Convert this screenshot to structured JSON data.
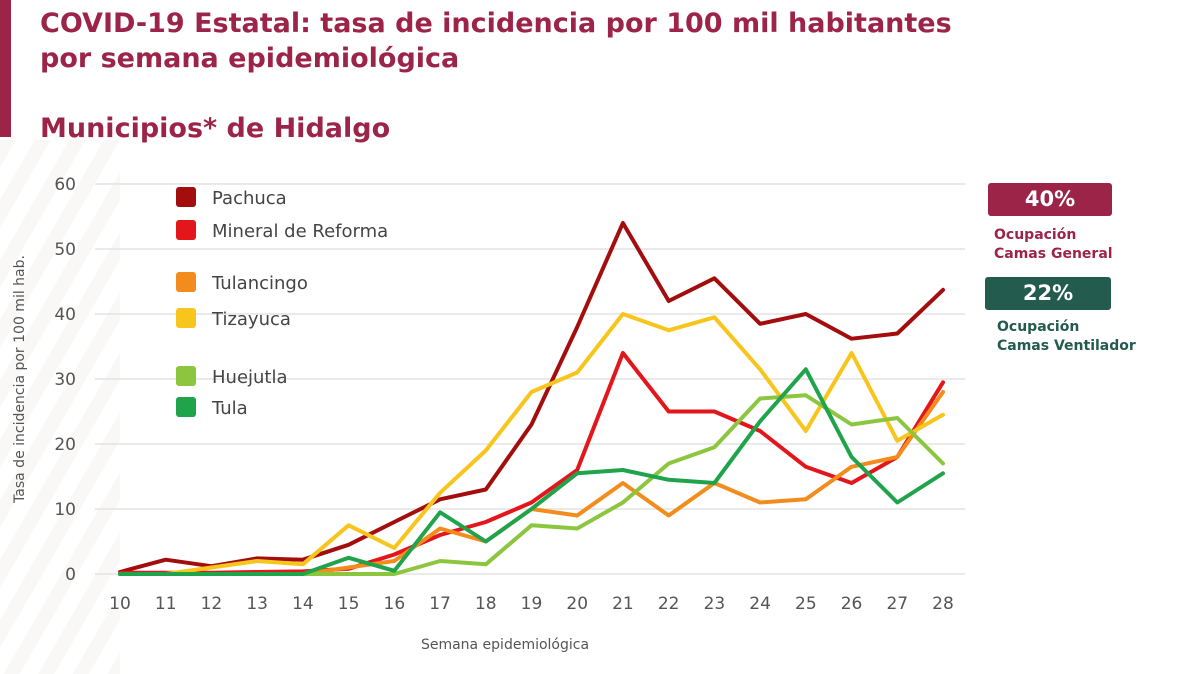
{
  "header": {
    "title_line1": "COVID-19 Estatal: tasa de incidencia por 100 mil habitantes",
    "title_line2": "por semana epidemiológica",
    "subtitle": "Municipios* de Hidalgo"
  },
  "colors": {
    "accent": "#9d2449",
    "gridline": "#e3e3e3",
    "badge_general": "#9d2449",
    "badge_ventilador": "#235b4e"
  },
  "indicators": {
    "general": {
      "value": "40%",
      "line1": "Ocupación",
      "line2": "Camas General"
    },
    "ventilador": {
      "value": "22%",
      "line1": "Ocupación",
      "line2": "Camas Ventilador"
    }
  },
  "chart_data": {
    "type": "line",
    "title": "Municipios* de Hidalgo",
    "xlabel": "Semana epidemiológica",
    "ylabel": "Tasa de incidencia por 100 mil hab.",
    "x": [
      10,
      11,
      12,
      13,
      14,
      15,
      16,
      17,
      18,
      19,
      20,
      21,
      22,
      23,
      24,
      25,
      26,
      27,
      28
    ],
    "ylim": [
      0,
      60
    ],
    "yticks": [
      0,
      10,
      20,
      30,
      40,
      50,
      60
    ],
    "grid": true,
    "legend_position": "top-left",
    "series": [
      {
        "name": "Pachuca",
        "color": "#a30d0d",
        "values": [
          0.3,
          2.2,
          1.2,
          2.4,
          2.2,
          4.5,
          8,
          11.5,
          13,
          23,
          38,
          54,
          42,
          45.5,
          38.5,
          40,
          36.2,
          37,
          43.7
        ]
      },
      {
        "name": "Mineral de Reforma",
        "color": "#e3161c",
        "values": [
          0.2,
          0.2,
          0.2,
          0.3,
          0.4,
          0.8,
          3,
          6,
          8,
          11,
          16,
          34,
          25,
          25,
          22,
          16.5,
          14,
          18,
          29.5
        ]
      },
      {
        "name": "Tulancingo",
        "color": "#f28c1c",
        "values": [
          0,
          0,
          0,
          0,
          0,
          1,
          2,
          7,
          5,
          10,
          9,
          14,
          9,
          14,
          11,
          11.5,
          16.5,
          18,
          28
        ]
      },
      {
        "name": "Tizayuca",
        "color": "#f8c51d",
        "values": [
          0,
          0,
          1,
          2,
          1.5,
          7.5,
          4,
          12.5,
          19,
          28,
          31,
          40,
          37.5,
          39.5,
          31.5,
          22,
          34,
          20.5,
          24.5
        ]
      },
      {
        "name": "Huejutla",
        "color": "#8cc63f",
        "values": [
          0,
          0,
          0,
          0,
          0,
          0,
          0,
          2,
          1.5,
          7.5,
          7,
          11,
          17,
          19.5,
          27,
          27.5,
          23,
          24,
          17
        ]
      },
      {
        "name": "Tula",
        "color": "#1fa34b",
        "values": [
          0,
          0,
          0,
          0,
          0,
          2.5,
          0.5,
          9.5,
          5,
          10,
          15.5,
          16,
          14.5,
          14,
          23.5,
          31.5,
          18,
          11,
          15.5
        ]
      }
    ]
  }
}
